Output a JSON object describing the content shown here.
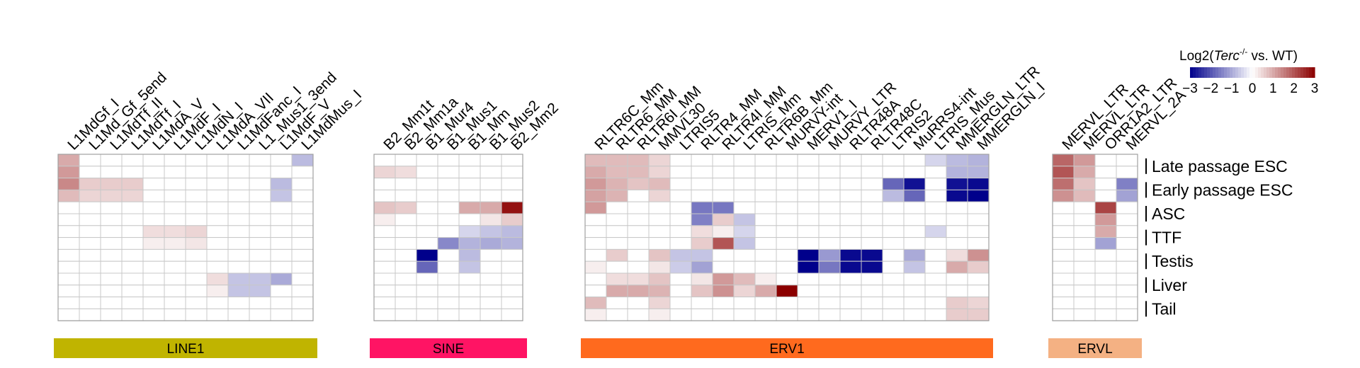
{
  "chart_data": {
    "type": "heatmap",
    "legend": {
      "title_prefix": "Log2(",
      "title_italic": "Terc",
      "title_superscript": "-/-",
      "title_suffix": " vs. WT)",
      "range": [
        -3,
        3
      ],
      "ticks": [
        "-3",
        "-2",
        "-1",
        "0",
        "1",
        "2",
        "3"
      ],
      "colors": {
        "low": "#00008B",
        "mid": "#FFFFFF",
        "high": "#8B0000"
      },
      "placement": "top-right"
    },
    "row_groups": [
      "Late passage ESC",
      "Early passage ESC",
      "ASC",
      "TTF",
      "Testis",
      "Liver",
      "Tail"
    ],
    "rows_per_group": 2,
    "panels": [
      {
        "group": "LINE1",
        "color": "#C0B400",
        "columns": [
          "L1MdGf_I",
          "L1Md_Gf_5end",
          "L1MdTf_II",
          "L1MdTf_I",
          "L1MdA_V",
          "L1MdF_I",
          "L1MdN_I",
          "L1MdA_VII",
          "L1MdFanc_I",
          "L1_Mus1_3end",
          "L1MdF_V",
          "L1MdMus_I"
        ],
        "values": [
          [
            1.0,
            0,
            0,
            0,
            0,
            0,
            0,
            0,
            0,
            0,
            0,
            -0.8
          ],
          [
            1.2,
            0,
            0,
            0,
            0,
            0,
            0,
            0,
            0,
            0,
            0,
            0
          ],
          [
            1.4,
            0.6,
            0.6,
            0.6,
            0,
            0,
            0,
            0,
            0,
            0,
            -0.8,
            0
          ],
          [
            0.8,
            0.5,
            0.5,
            0.5,
            0,
            0,
            0,
            0,
            0,
            0,
            -0.7,
            0
          ],
          [
            0,
            0,
            0,
            0,
            0,
            0,
            0,
            0,
            0,
            0,
            0,
            0
          ],
          [
            0,
            0,
            0,
            0,
            0,
            0,
            0,
            0,
            0,
            0,
            0,
            0
          ],
          [
            0,
            0,
            0,
            0,
            0.4,
            0.4,
            0.5,
            0,
            0,
            0,
            0,
            0
          ],
          [
            0,
            0,
            0,
            0,
            0.2,
            0.2,
            0.3,
            0,
            0,
            0,
            0,
            0
          ],
          [
            0,
            0,
            0,
            0,
            0,
            0,
            0,
            0,
            0,
            0,
            0,
            0
          ],
          [
            0,
            0,
            0,
            0,
            0,
            0,
            0,
            0,
            0,
            0,
            0,
            0
          ],
          [
            0,
            0,
            0,
            0,
            0,
            0,
            0,
            0.4,
            -0.7,
            -0.7,
            -1.0,
            0
          ],
          [
            0,
            0,
            0,
            0,
            0,
            0,
            0,
            0.2,
            -0.7,
            -0.7,
            0,
            0
          ],
          [
            0,
            0,
            0,
            0,
            0,
            0,
            0,
            0,
            0,
            0,
            0,
            0
          ],
          [
            0,
            0,
            0,
            0,
            0,
            0,
            0,
            0,
            0,
            0,
            0,
            0
          ]
        ]
      },
      {
        "group": "SINE",
        "color": "#FF1464",
        "columns": [
          "B2_Mm1t",
          "B2_Mm1a",
          "B1_Mur4",
          "B1_Mus1",
          "B1_Mm",
          "B1_Mus2",
          "B2_Mm2"
        ],
        "values": [
          [
            0,
            0,
            0,
            0,
            0,
            0,
            0
          ],
          [
            0.5,
            0.4,
            0,
            0,
            0,
            0,
            0
          ],
          [
            0,
            0,
            0,
            0,
            0,
            0,
            0
          ],
          [
            0,
            0,
            0,
            0,
            0,
            0,
            0
          ],
          [
            0.7,
            0.6,
            0,
            0,
            1.0,
            1.0,
            2.8
          ],
          [
            0.2,
            0,
            0,
            0,
            0,
            0.3,
            0.6
          ],
          [
            0,
            0,
            0,
            0,
            -0.5,
            -0.7,
            -0.8
          ],
          [
            0,
            0,
            0,
            -1.4,
            -0.9,
            -1.0,
            -0.9
          ],
          [
            0,
            0,
            -3.0,
            0,
            -0.8,
            0,
            0
          ],
          [
            0,
            0,
            -1.8,
            0,
            -0.7,
            0,
            0
          ],
          [
            0,
            0,
            0,
            0,
            0,
            0,
            0
          ],
          [
            0,
            0,
            0,
            0,
            0,
            0,
            0
          ],
          [
            0,
            0,
            0,
            0,
            0,
            0,
            0
          ],
          [
            0,
            0,
            0,
            0,
            0,
            0,
            0
          ]
        ]
      },
      {
        "group": "ERV1",
        "color": "#FF6A1E",
        "columns": [
          "RLTR6C_Mm",
          "RLTR6_MM",
          "RLTR6I_MM",
          "MMVL30",
          "LTRIS5",
          "RLTR4_MM",
          "RLTR4I_MM",
          "LTRIS_Mm",
          "RLTR6B_Mm",
          "MURVY-int",
          "MERV1_I",
          "MURVY_LTR",
          "RLTR48A",
          "RLTR48C",
          "LTRIS2",
          "MuRRS4-int",
          "LTRIS_Mus",
          "MMERGLN_LTR",
          "MMERGLN_I"
        ],
        "values": [
          [
            0.8,
            0.8,
            0.8,
            0.5,
            0,
            0,
            0,
            0,
            0,
            0,
            0,
            0,
            0,
            0,
            0,
            0,
            -0.5,
            -0.8,
            -0.9
          ],
          [
            1.0,
            0.8,
            0.8,
            0.5,
            0,
            0,
            0,
            0,
            0,
            0,
            0,
            0,
            0,
            0,
            0,
            0,
            0,
            -0.9,
            -0.9
          ],
          [
            1.2,
            0.9,
            0.7,
            0.8,
            0,
            0,
            0,
            0,
            0,
            0,
            0,
            0,
            0,
            0,
            -1.8,
            -2.8,
            0,
            -2.8,
            -2.9
          ],
          [
            1.1,
            0.9,
            0,
            0.5,
            0,
            0,
            0,
            0,
            0,
            0,
            0,
            0,
            0,
            0,
            -0.8,
            -1.8,
            0,
            -2.9,
            -3.0
          ],
          [
            1.2,
            0,
            0,
            0,
            0,
            -1.6,
            -1.6,
            0,
            0,
            0,
            0,
            0,
            0,
            0,
            0,
            0,
            0,
            0,
            0
          ],
          [
            0,
            0,
            0,
            0,
            0,
            -1.5,
            0.6,
            -0.7,
            0,
            0,
            0,
            0,
            0,
            0,
            0,
            0,
            0,
            0,
            0
          ],
          [
            0,
            0,
            0,
            0,
            0,
            0.4,
            0.2,
            -0.5,
            0,
            0,
            0,
            0,
            0,
            0,
            0,
            0,
            -0.5,
            0,
            0
          ],
          [
            0,
            0,
            0,
            0,
            0,
            0.6,
            2.0,
            -0.7,
            0,
            0,
            0,
            0,
            0,
            0,
            0,
            0,
            0,
            0,
            0
          ],
          [
            0,
            0.6,
            0,
            0.7,
            -0.7,
            -0.7,
            0,
            0,
            0,
            0,
            -3.0,
            -1.2,
            -2.9,
            -2.9,
            0,
            -1.0,
            0,
            0.4,
            1.3
          ],
          [
            0.2,
            0,
            0,
            0.3,
            -0.6,
            -1.1,
            0,
            0,
            0,
            0,
            -3.0,
            -1.6,
            -2.9,
            -2.9,
            0,
            -0.7,
            0,
            1.0,
            0.6
          ],
          [
            0,
            0.4,
            0.4,
            0.7,
            0,
            0.3,
            1.2,
            0.8,
            0.2,
            0,
            0,
            0,
            0,
            0,
            0,
            0,
            0,
            0,
            0
          ],
          [
            0,
            1.0,
            1.0,
            0.9,
            0,
            0.7,
            1.3,
            0.5,
            1.0,
            3.0,
            0,
            0,
            0,
            0,
            0,
            0,
            0,
            0,
            0
          ],
          [
            0.8,
            0,
            0,
            0.5,
            0,
            0,
            0,
            0,
            0,
            0,
            0,
            0,
            0,
            0,
            0,
            0,
            0,
            0.6,
            0.5
          ],
          [
            0.2,
            0,
            0,
            0.2,
            0,
            0,
            0,
            0,
            0,
            0,
            0,
            0,
            0,
            0,
            0,
            0,
            0,
            0.6,
            0.6
          ]
        ]
      },
      {
        "group": "ERVL",
        "color": "#F4B183",
        "columns": [
          "MERVL_LTR",
          "MERVL_LTR",
          "ORR1A2_LTR",
          "MERVL_2A"
        ],
        "values": [
          [
            1.8,
            1.2,
            0,
            0
          ],
          [
            2.0,
            1.0,
            0,
            0
          ],
          [
            1.7,
            0.7,
            0,
            -1.5
          ],
          [
            1.3,
            0.8,
            0,
            -1.1
          ],
          [
            0,
            0,
            2.2,
            0
          ],
          [
            0,
            0,
            1.2,
            0
          ],
          [
            0,
            0,
            1.0,
            0
          ],
          [
            0,
            0,
            -1.1,
            0
          ],
          [
            0,
            0,
            0,
            0
          ],
          [
            0,
            0,
            0,
            0
          ],
          [
            0,
            0,
            0,
            0
          ],
          [
            0,
            0,
            0,
            0
          ],
          [
            0,
            0,
            0,
            0
          ],
          [
            0,
            0,
            0,
            0
          ]
        ]
      }
    ]
  }
}
